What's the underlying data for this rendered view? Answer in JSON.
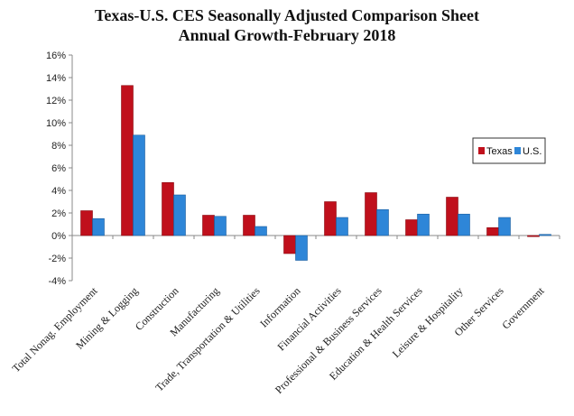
{
  "chart_data": {
    "type": "bar",
    "title_lines": [
      "Texas-U.S. CES Seasonally Adjusted Comparison Sheet",
      "Annual Growth-February 2018"
    ],
    "categories": [
      "Total Nonag. Employment",
      "Mining & Logging",
      "Construction",
      "Manufacturing",
      "Trade, Transportation & Utilities",
      "Information",
      "Financial Activities",
      "Professional & Business Services",
      "Education & Health Services",
      "Leisure & Hospitality",
      "Other Services",
      "Government"
    ],
    "series": [
      {
        "name": "Texas",
        "values": [
          2.2,
          13.3,
          4.7,
          1.8,
          1.8,
          -1.6,
          3.0,
          3.8,
          1.4,
          3.4,
          0.7,
          0.0
        ],
        "color": "#c0101c"
      },
      {
        "name": "U.S.",
        "values": [
          1.5,
          8.9,
          3.6,
          1.7,
          0.8,
          -2.2,
          1.6,
          2.3,
          1.9,
          1.9,
          1.6,
          0.1
        ],
        "color": "#2e86d8"
      }
    ],
    "ylim": [
      -4,
      16
    ],
    "yticks": [
      -4,
      -2,
      0,
      2,
      4,
      6,
      8,
      10,
      12,
      14,
      16
    ],
    "ytick_labels": [
      "-4%",
      "-2%",
      "0%",
      "2%",
      "4%",
      "6%",
      "8%",
      "10%",
      "12%",
      "14%",
      "16%"
    ],
    "grid": false,
    "legend_position": "right"
  }
}
